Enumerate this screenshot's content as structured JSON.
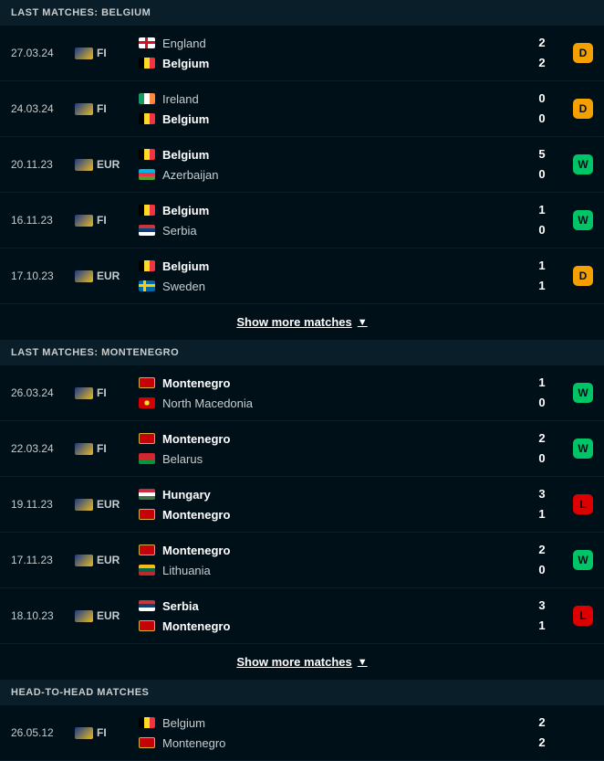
{
  "colors": {
    "badge_win": "#00c566",
    "badge_draw": "#f3a000",
    "badge_loss": "#dc0000"
  },
  "sections": [
    {
      "title": "LAST MATCHES: BELGIUM",
      "matches": [
        {
          "date": "27.03.24",
          "comp": "FI",
          "home": "England",
          "home_bold": false,
          "home_flag": "eng",
          "away": "Belgium",
          "away_bold": true,
          "away_flag": "bel",
          "hs": "2",
          "as": "2",
          "result": "D"
        },
        {
          "date": "24.03.24",
          "comp": "FI",
          "home": "Ireland",
          "home_bold": false,
          "home_flag": "irl",
          "away": "Belgium",
          "away_bold": true,
          "away_flag": "bel",
          "hs": "0",
          "as": "0",
          "result": "D"
        },
        {
          "date": "20.11.23",
          "comp": "EUR",
          "home": "Belgium",
          "home_bold": true,
          "home_flag": "bel",
          "away": "Azerbaijan",
          "away_bold": false,
          "away_flag": "aze",
          "hs": "5",
          "as": "0",
          "result": "W"
        },
        {
          "date": "16.11.23",
          "comp": "FI",
          "home": "Belgium",
          "home_bold": true,
          "home_flag": "bel",
          "away": "Serbia",
          "away_bold": false,
          "away_flag": "srb",
          "hs": "1",
          "as": "0",
          "result": "W"
        },
        {
          "date": "17.10.23",
          "comp": "EUR",
          "home": "Belgium",
          "home_bold": true,
          "home_flag": "bel",
          "away": "Sweden",
          "away_bold": false,
          "away_flag": "swe",
          "hs": "1",
          "as": "1",
          "result": "D"
        }
      ],
      "show_more": "Show more matches"
    },
    {
      "title": "LAST MATCHES: MONTENEGRO",
      "matches": [
        {
          "date": "26.03.24",
          "comp": "FI",
          "home": "Montenegro",
          "home_bold": true,
          "home_flag": "mne",
          "away": "North Macedonia",
          "away_bold": false,
          "away_flag": "mkd",
          "hs": "1",
          "as": "0",
          "result": "W"
        },
        {
          "date": "22.03.24",
          "comp": "FI",
          "home": "Montenegro",
          "home_bold": true,
          "home_flag": "mne",
          "away": "Belarus",
          "away_bold": false,
          "away_flag": "blr",
          "hs": "2",
          "as": "0",
          "result": "W"
        },
        {
          "date": "19.11.23",
          "comp": "EUR",
          "home": "Hungary",
          "home_bold": true,
          "home_flag": "hun",
          "away": "Montenegro",
          "away_bold": true,
          "away_flag": "mne",
          "hs": "3",
          "as": "1",
          "result": "L"
        },
        {
          "date": "17.11.23",
          "comp": "EUR",
          "home": "Montenegro",
          "home_bold": true,
          "home_flag": "mne",
          "away": "Lithuania",
          "away_bold": false,
          "away_flag": "ltu",
          "hs": "2",
          "as": "0",
          "result": "W"
        },
        {
          "date": "18.10.23",
          "comp": "EUR",
          "home": "Serbia",
          "home_bold": true,
          "home_flag": "srb",
          "away": "Montenegro",
          "away_bold": true,
          "away_flag": "mne",
          "hs": "3",
          "as": "1",
          "result": "L"
        }
      ],
      "show_more": "Show more matches"
    },
    {
      "title": "HEAD-TO-HEAD MATCHES",
      "matches": [
        {
          "date": "26.05.12",
          "comp": "FI",
          "home": "Belgium",
          "home_bold": false,
          "home_flag": "bel",
          "away": "Montenegro",
          "away_bold": false,
          "away_flag": "mne",
          "hs": "2",
          "as": "2",
          "result": ""
        }
      ],
      "show_more": ""
    }
  ]
}
